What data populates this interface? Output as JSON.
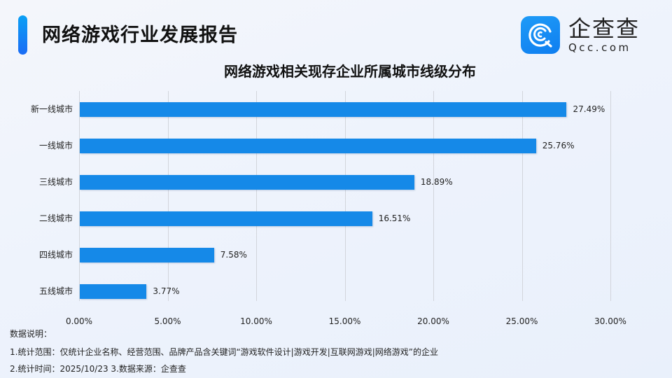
{
  "header": {
    "report_title": "网络游戏行业发展报告",
    "logo": {
      "icon": "qcc-logo-icon",
      "name_cn": "企查查",
      "name_en": "Qcc.com"
    },
    "accent_color": "#1a7cf5"
  },
  "chart_data": {
    "type": "bar",
    "orientation": "horizontal",
    "title": "网络游戏相关现存企业所属城市线级分布",
    "xlabel": "",
    "ylabel": "",
    "categories": [
      "新一线城市",
      "一线城市",
      "三线城市",
      "二线城市",
      "四线城市",
      "五线城市"
    ],
    "values": [
      27.49,
      25.76,
      18.89,
      16.51,
      7.58,
      3.77
    ],
    "value_labels": [
      "27.49%",
      "25.76%",
      "18.89%",
      "16.51%",
      "7.58%",
      "3.77%"
    ],
    "xlim": [
      0,
      30
    ],
    "x_ticks": [
      "0.00%",
      "5.00%",
      "10.00%",
      "15.00%",
      "20.00%",
      "25.00%",
      "30.00%"
    ],
    "grid": "vertical",
    "bar_color": "#1589e8",
    "legend": null
  },
  "notes": {
    "heading": "数据说明：",
    "line1": "1.统计范围：仅统计企业名称、经营范围、品牌产品含关键词“游戏软件设计|游戏开发|互联网游戏|网络游戏”的企业",
    "line2": " 2.统计时间：2025/10/23 3.数据来源：企查查"
  }
}
